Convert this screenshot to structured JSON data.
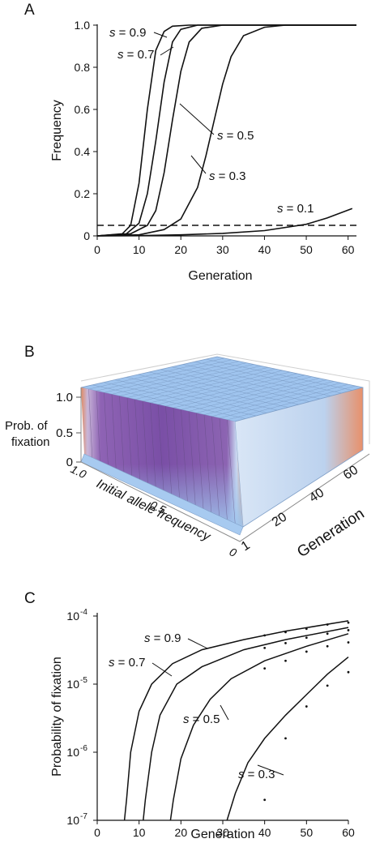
{
  "chart_data": [
    {
      "panel": "A",
      "type": "line",
      "xlabel": "Generation",
      "ylabel": "Frequency",
      "xlim": [
        0,
        62
      ],
      "ylim": [
        0,
        1.0
      ],
      "x_ticks": [
        "0",
        "10",
        "20",
        "30",
        "40",
        "50",
        "60"
      ],
      "y_ticks": [
        "0",
        "0.2",
        "0.4",
        "0.6",
        "0.8",
        "1.0"
      ],
      "threshold_line": {
        "y": 0.05,
        "style": "dashed"
      },
      "series": [
        {
          "name": "s = 0.9",
          "points": [
            [
              0,
              0
            ],
            [
              6,
              0.01
            ],
            [
              8,
              0.05
            ],
            [
              10,
              0.25
            ],
            [
              12,
              0.6
            ],
            [
              14,
              0.88
            ],
            [
              16,
              0.97
            ],
            [
              18,
              0.995
            ],
            [
              22,
              1.0
            ],
            [
              62,
              1.0
            ]
          ]
        },
        {
          "name": "s = 0.7",
          "points": [
            [
              0,
              0
            ],
            [
              7,
              0.01
            ],
            [
              10,
              0.06
            ],
            [
              12,
              0.2
            ],
            [
              14,
              0.45
            ],
            [
              16,
              0.73
            ],
            [
              18,
              0.92
            ],
            [
              20,
              0.98
            ],
            [
              24,
              1.0
            ],
            [
              62,
              1.0
            ]
          ]
        },
        {
          "name": "s = 0.5",
          "points": [
            [
              0,
              0
            ],
            [
              8,
              0.01
            ],
            [
              12,
              0.05
            ],
            [
              14,
              0.12
            ],
            [
              16,
              0.3
            ],
            [
              18,
              0.55
            ],
            [
              20,
              0.78
            ],
            [
              22,
              0.92
            ],
            [
              25,
              0.985
            ],
            [
              30,
              1.0
            ],
            [
              62,
              1.0
            ]
          ]
        },
        {
          "name": "s = 0.3",
          "points": [
            [
              0,
              0
            ],
            [
              10,
              0.005
            ],
            [
              16,
              0.03
            ],
            [
              20,
              0.08
            ],
            [
              24,
              0.23
            ],
            [
              26,
              0.38
            ],
            [
              28,
              0.55
            ],
            [
              30,
              0.72
            ],
            [
              32,
              0.85
            ],
            [
              35,
              0.95
            ],
            [
              40,
              0.99
            ],
            [
              45,
              1.0
            ],
            [
              62,
              1.0
            ]
          ]
        },
        {
          "name": "s = 0.1",
          "points": [
            [
              0,
              0
            ],
            [
              10,
              0.001
            ],
            [
              20,
              0.005
            ],
            [
              30,
              0.012
            ],
            [
              40,
              0.025
            ],
            [
              50,
              0.055
            ],
            [
              55,
              0.085
            ],
            [
              61,
              0.13
            ]
          ]
        }
      ]
    },
    {
      "panel": "B",
      "type": "surface",
      "zlabel_line1": "Prob. of",
      "zlabel_line2": "fixation",
      "xlabel": "Initial allele frequency",
      "ylabel": "Generation",
      "z_ticks": [
        "1.0",
        "0.5",
        "0"
      ],
      "x_ticks": [
        "1.0",
        "0.5",
        "0"
      ],
      "y_ticks": [
        "1",
        "20",
        "40",
        "60"
      ],
      "colors": {
        "low": "#9dc3ec",
        "mid": "#7a4fa6",
        "high": "#e07a55"
      }
    },
    {
      "panel": "C",
      "type": "line",
      "xlabel": "Generation",
      "ylabel": "Probability of fixation",
      "yscale": "log",
      "xlim": [
        0,
        60
      ],
      "ylim": [
        1e-07,
        0.0001
      ],
      "x_ticks": [
        "0",
        "10",
        "20",
        "30",
        "40",
        "50",
        "60"
      ],
      "y_ticks": [
        {
          "base": "10",
          "exp": "-7"
        },
        {
          "base": "10",
          "exp": "-6"
        },
        {
          "base": "10",
          "exp": "-5"
        },
        {
          "base": "10",
          "exp": "-4"
        }
      ],
      "series": [
        {
          "name": "s = 0.9",
          "points": [
            [
              6.5,
              1e-07
            ],
            [
              7,
              2e-07
            ],
            [
              8,
              1e-06
            ],
            [
              10,
              4e-06
            ],
            [
              13,
              1e-05
            ],
            [
              18,
              2e-05
            ],
            [
              25,
              3.2e-05
            ],
            [
              35,
              4.5e-05
            ],
            [
              45,
              6e-05
            ],
            [
              60,
              8.5e-05
            ]
          ]
        },
        {
          "name": "s = 0.7",
          "points": [
            [
              11,
              1e-07
            ],
            [
              11.5,
              2e-07
            ],
            [
              13,
              1e-06
            ],
            [
              15,
              3.5e-06
            ],
            [
              19,
              1e-05
            ],
            [
              25,
              1.8e-05
            ],
            [
              35,
              3.2e-05
            ],
            [
              45,
              4.5e-05
            ],
            [
              60,
              6.8e-05
            ]
          ]
        },
        {
          "name": "s = 0.5",
          "points": [
            [
              17.5,
              1e-07
            ],
            [
              18.2,
              2e-07
            ],
            [
              20,
              8e-07
            ],
            [
              23,
              2.5e-06
            ],
            [
              27,
              6e-06
            ],
            [
              32,
              1.2e-05
            ],
            [
              40,
              2.2e-05
            ],
            [
              50,
              3.6e-05
            ],
            [
              60,
              5.5e-05
            ]
          ]
        },
        {
          "name": "s = 0.3",
          "points": [
            [
              31,
              1e-07
            ],
            [
              33,
              2.5e-07
            ],
            [
              36,
              7e-07
            ],
            [
              40,
              1.6e-06
            ],
            [
              45,
              3.5e-06
            ],
            [
              50,
              7e-06
            ],
            [
              55,
              1.4e-05
            ],
            [
              60,
              2.5e-05
            ]
          ]
        }
      ],
      "dots": [
        [
          40,
          5.2e-05
        ],
        [
          40,
          3.4e-05
        ],
        [
          40,
          1.7e-05
        ],
        [
          40,
          2e-07
        ],
        [
          45,
          5.8e-05
        ],
        [
          45,
          4e-05
        ],
        [
          45,
          2.2e-05
        ],
        [
          45,
          1.6e-06
        ],
        [
          50,
          6.5e-05
        ],
        [
          50,
          4.8e-05
        ],
        [
          50,
          3e-05
        ],
        [
          50,
          4.7e-06
        ],
        [
          55,
          7.5e-05
        ],
        [
          55,
          5.5e-05
        ],
        [
          55,
          3.6e-05
        ],
        [
          55,
          9.5e-06
        ],
        [
          60,
          8e-05
        ],
        [
          60,
          6.2e-05
        ],
        [
          60,
          4.1e-05
        ],
        [
          60,
          1.5e-05
        ]
      ]
    }
  ],
  "panels": {
    "a_label": "A",
    "b_label": "B",
    "c_label": "C"
  },
  "series_labels": {
    "s_symbol": "s",
    "a": [
      " = 0.9",
      " = 0.7",
      " = 0.5",
      " = 0.3",
      " = 0.1"
    ],
    "c": [
      " = 0.9",
      " = 0.7",
      " = 0.5",
      " = 0.3"
    ]
  }
}
